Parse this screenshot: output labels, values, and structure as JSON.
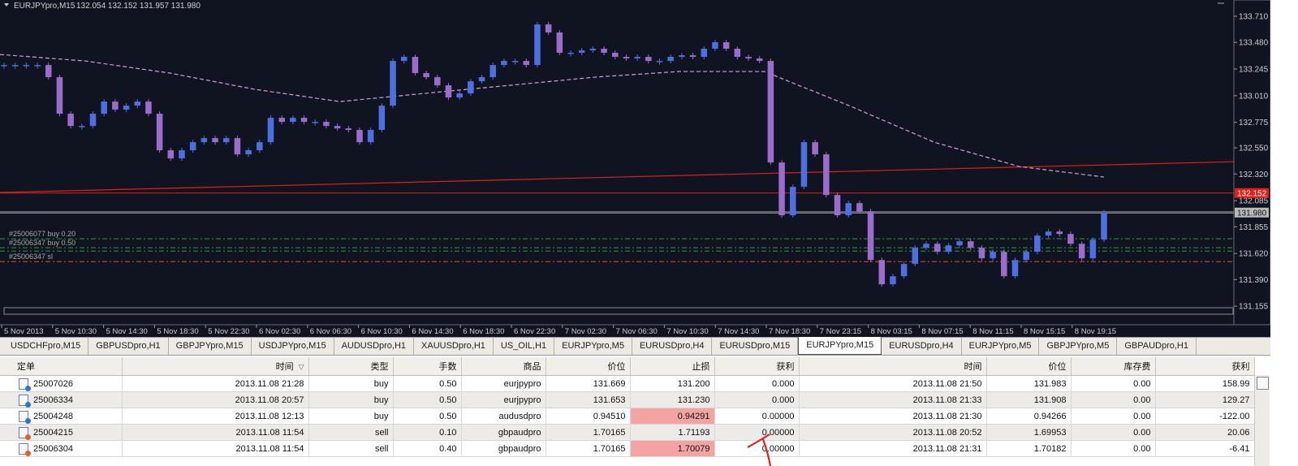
{
  "chart_data": {
    "type": "candlestick",
    "title": "EURJPYpro,M15",
    "subtitle": "132.054 132.152 131.957 131.980",
    "up_color": "#4d6fe0",
    "down_color": "#9a6ccb",
    "values": [
      133.28,
      133.28,
      133.28,
      133.28,
      133.173,
      132.851,
      132.743,
      132.743,
      132.851,
      132.958,
      132.887,
      132.922,
      132.958,
      132.851,
      132.529,
      132.457,
      132.529,
      132.6,
      132.636,
      132.6,
      132.636,
      132.493,
      132.529,
      132.6,
      132.815,
      132.779,
      132.815,
      132.779,
      132.779,
      132.743,
      132.722,
      132.708,
      132.6,
      132.708,
      132.922,
      133.316,
      133.352,
      133.209,
      133.173,
      133.101,
      132.994,
      133.03,
      133.137,
      133.173,
      133.28,
      133.316,
      133.316,
      133.28,
      133.638,
      133.567,
      133.388,
      133.388,
      133.409,
      133.424,
      133.388,
      133.352,
      133.338,
      133.352,
      133.316,
      133.316,
      133.352,
      133.366,
      133.352,
      133.424,
      133.481,
      133.424,
      133.352,
      133.338,
      133.316,
      132.421,
      131.956,
      132.207,
      132.6,
      132.493,
      132.135,
      131.956,
      132.063,
      131.992,
      131.562,
      131.348,
      131.419,
      131.527,
      131.67,
      131.705,
      131.634,
      131.691,
      131.727,
      131.67,
      131.577,
      131.634,
      131.419,
      131.562,
      131.634,
      131.777,
      131.813,
      131.791,
      131.705,
      131.577,
      131.741,
      131.98
    ],
    "moving_average": {
      "color": "#d79be0",
      "values": [
        133.373,
        133.316,
        133.209,
        133.066,
        132.958,
        133.03,
        133.101,
        133.173,
        133.223,
        133.223,
        132.922,
        132.6,
        132.386,
        132.293
      ]
    },
    "trendline": {
      "color": "#e0201b",
      "values": [
        132.157,
        132.428
      ]
    },
    "ask": {
      "value": 132.152,
      "label": "132.152",
      "color": "#e0201b"
    },
    "bid": {
      "value": 131.98,
      "label": "131.980",
      "color": "#b8b8b8"
    },
    "order_levels": [
      {
        "label": "#25006077 buy 0.20",
        "value": 131.749,
        "color": "#2f9a3a"
      },
      {
        "label": "#25006347 buy 0.50",
        "value": 131.67,
        "color": "#2f9a3a"
      },
      {
        "value": 131.641,
        "color": "#2f9a3a"
      },
      {
        "label": "#25006347 sl",
        "value": 131.548,
        "color": "#d9542c"
      }
    ],
    "ylim": [
      131.02,
      133.853
    ],
    "yticks": [
      {
        "value": 133.71,
        "label": "133.710"
      },
      {
        "value": 133.48,
        "label": "133.480"
      },
      133.245,
      {
        "value": 133.01,
        "label": "133.010"
      },
      132.775,
      {
        "value": 132.55,
        "label": "132.550"
      },
      {
        "value": 132.32,
        "label": "132.320"
      },
      132.085,
      131.855,
      {
        "value": 131.62,
        "label": "131.620"
      },
      {
        "value": 131.39,
        "label": "131.390"
      },
      131.155
    ],
    "time_labels": [
      "5 Nov 2013",
      "5 Nov 10:30",
      "5 Nov 14:30",
      "5 Nov 18:30",
      "5 Nov 22:30",
      "6 Nov 02:30",
      "6 Nov 06:30",
      "6 Nov 10:30",
      "6 Nov 14:30",
      "6 Nov 18:30",
      "6 Nov 22:30",
      "7 Nov 02:30",
      "7 Nov 06:30",
      "7 Nov 10:30",
      "7 Nov 14:30",
      "7 Nov 18:30",
      "7 Nov 23:15",
      "8 Nov 03:15",
      "8 Nov 07:15",
      "8 Nov 11:15",
      "8 Nov 15:15",
      "8 Nov 19:15"
    ]
  },
  "tabs": [
    "USDCHFpro,M15",
    "GBPUSDpro,H1",
    "GBPJPYpro,M15",
    "USDJPYpro,M15",
    "AUDUSDpro,H1",
    "XAUUSDpro,H1",
    "US_OIL,H1",
    "EURJPYpro,M5",
    "EURUSDpro,H4",
    "EURUSDpro,M15",
    "EURJPYpro,M15",
    "EURUSDpro,H4",
    "EURJPYpro,M5",
    "GBPJPYpro,M5",
    "GBPAUDpro,H1"
  ],
  "active_tab": 10,
  "table": {
    "columns": [
      "定单",
      "时间",
      "类型",
      "手数",
      "商品",
      "价位",
      "止损",
      "获利",
      "时间",
      "价位",
      "库存费",
      "获利"
    ],
    "sort_marker": "▽",
    "rows": [
      [
        "25007026",
        "2013.11.08 21:28",
        "buy",
        "0.50",
        "eurjpypro",
        "131.669",
        "131.200",
        "0.000",
        "2013.11.08 21:50",
        "131.983",
        "0.00",
        "158.99"
      ],
      [
        "25006334",
        "2013.11.08 20:57",
        "buy",
        "0.50",
        "eurjpypro",
        "131.653",
        "131.230",
        "0.000",
        "2013.11.08 21:33",
        "131.908",
        "0.00",
        "129.27"
      ],
      [
        "25004248",
        "2013.11.08 12:13",
        "buy",
        "0.50",
        "audusdpro",
        "0.94510",
        "0.94291",
        "0.00000",
        "2013.11.08 21:30",
        "0.94266",
        "0.00",
        "-122.00"
      ],
      [
        "25004215",
        "2013.11.08 11:54",
        "sell",
        "0.10",
        "gbpaudpro",
        "1.70165",
        "1.71193",
        "0.00000",
        "2013.11.08 20:52",
        "1.69953",
        "0.00",
        "20.06"
      ],
      [
        "25006304",
        "2013.11.08 11:54",
        "sell",
        "0.40",
        "gbpaudpro",
        "1.70165",
        "1.70079",
        "0.00000",
        "2013.11.08 21:31",
        "1.70182",
        "0.00",
        "-6.41"
      ]
    ]
  }
}
